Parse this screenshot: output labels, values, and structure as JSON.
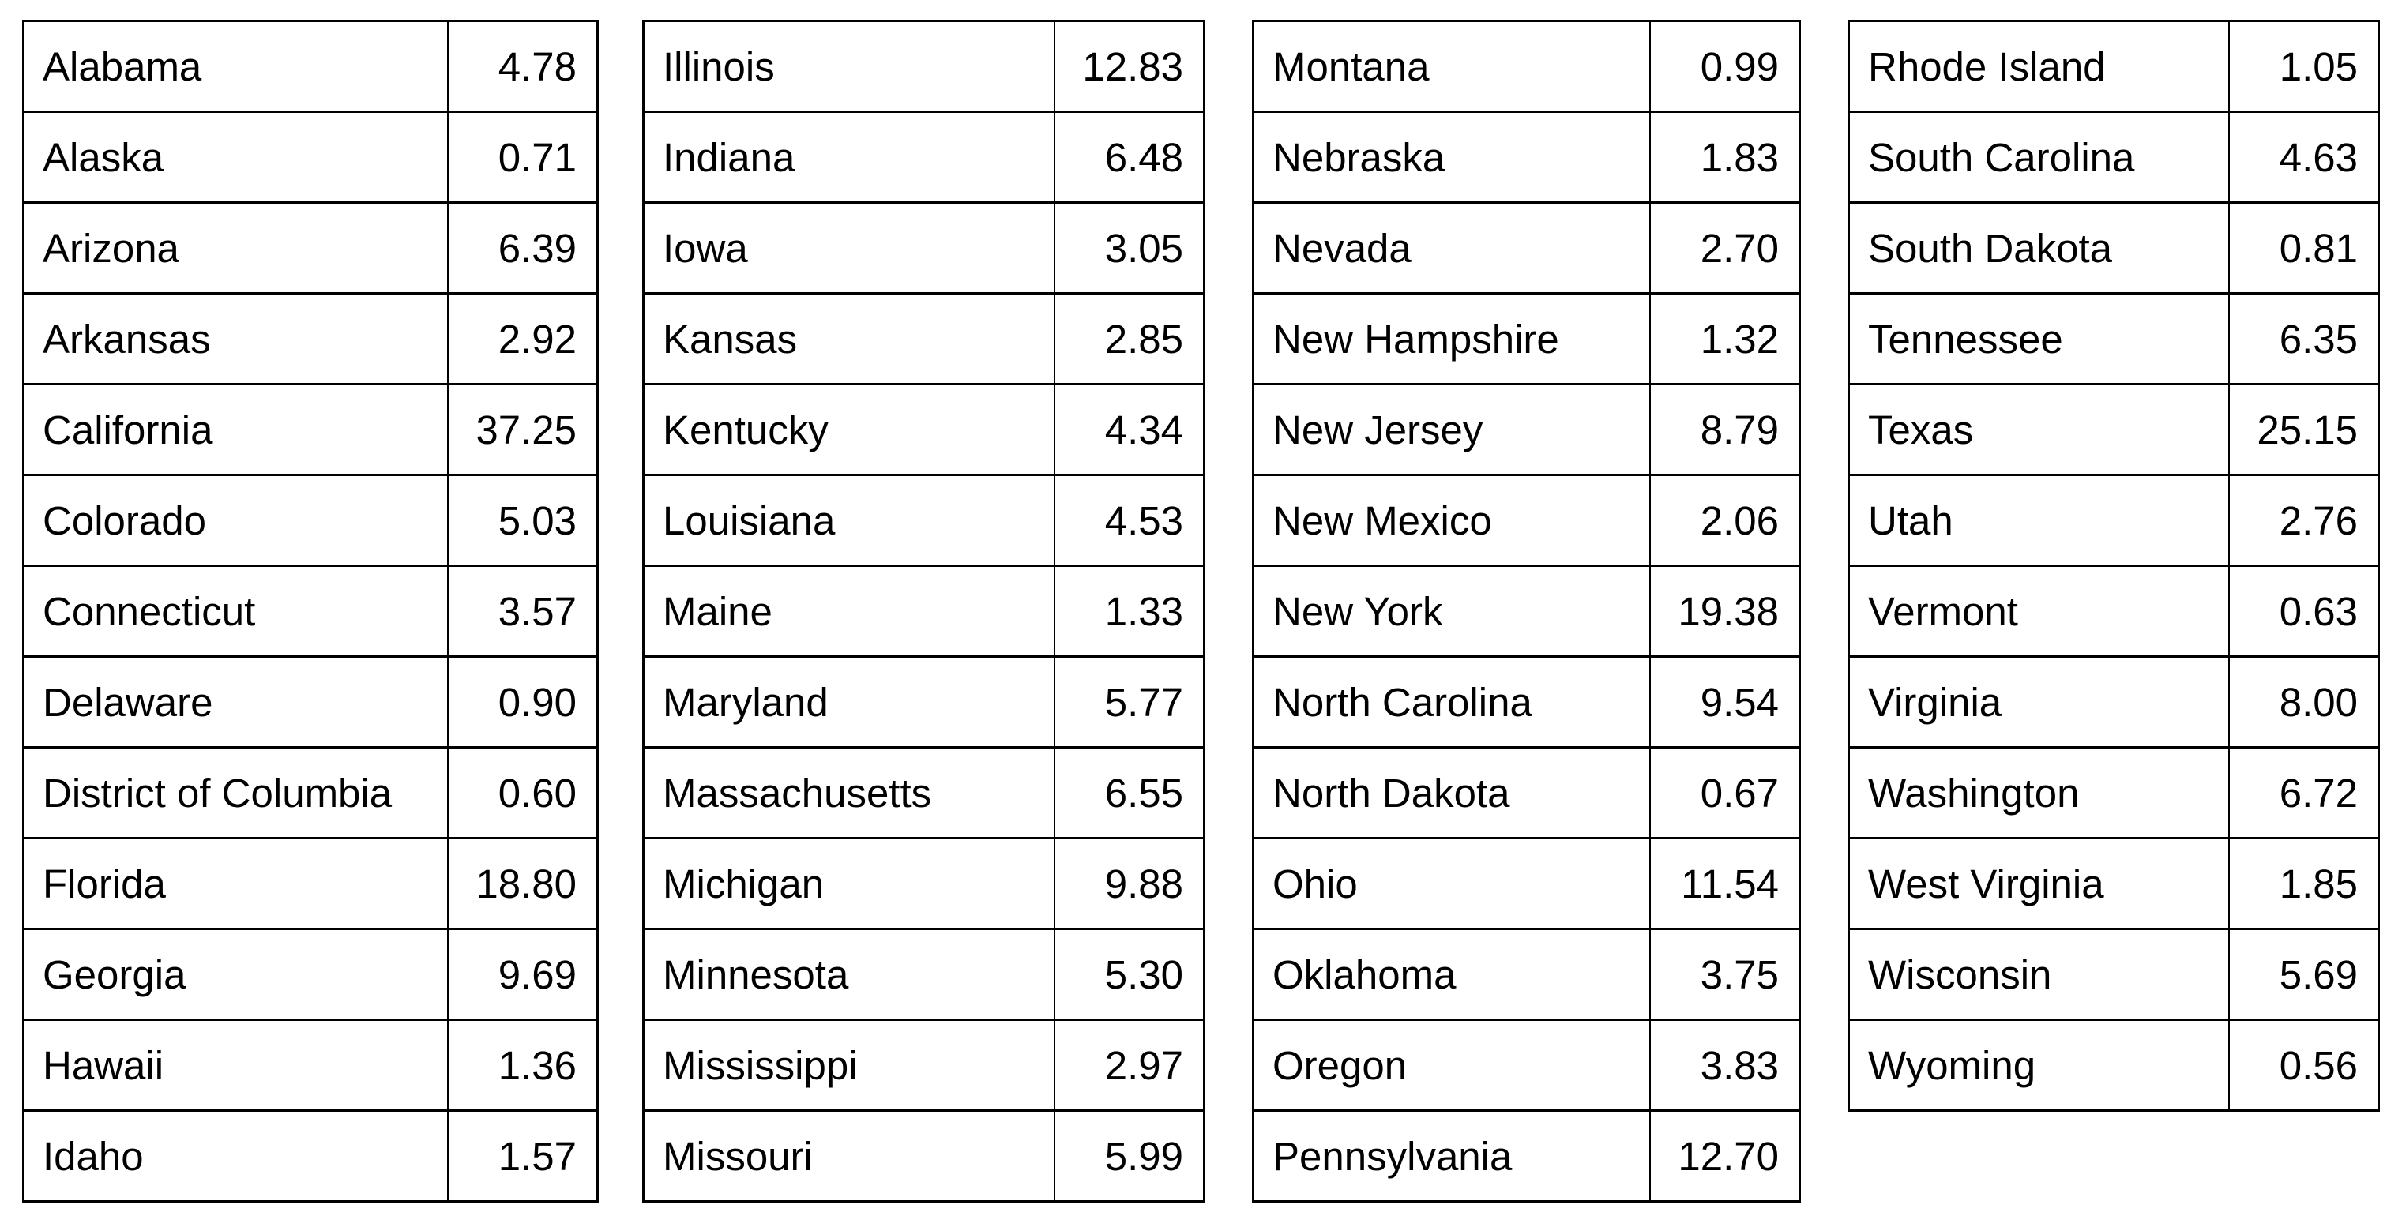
{
  "tables": [
    {
      "rows": [
        {
          "state": "Alabama",
          "value": "4.78"
        },
        {
          "state": "Alaska",
          "value": "0.71"
        },
        {
          "state": "Arizona",
          "value": "6.39"
        },
        {
          "state": "Arkansas",
          "value": "2.92"
        },
        {
          "state": "California",
          "value": "37.25"
        },
        {
          "state": "Colorado",
          "value": "5.03"
        },
        {
          "state": "Connecticut",
          "value": "3.57"
        },
        {
          "state": "Delaware",
          "value": "0.90"
        },
        {
          "state": "District of Columbia",
          "value": "0.60"
        },
        {
          "state": "Florida",
          "value": "18.80"
        },
        {
          "state": "Georgia",
          "value": "9.69"
        },
        {
          "state": "Hawaii",
          "value": "1.36"
        },
        {
          "state": "Idaho",
          "value": "1.57"
        }
      ]
    },
    {
      "rows": [
        {
          "state": "Illinois",
          "value": "12.83"
        },
        {
          "state": "Indiana",
          "value": "6.48"
        },
        {
          "state": "Iowa",
          "value": "3.05"
        },
        {
          "state": "Kansas",
          "value": "2.85"
        },
        {
          "state": "Kentucky",
          "value": "4.34"
        },
        {
          "state": "Louisiana",
          "value": "4.53"
        },
        {
          "state": "Maine",
          "value": "1.33"
        },
        {
          "state": "Maryland",
          "value": "5.77"
        },
        {
          "state": "Massachusetts",
          "value": "6.55"
        },
        {
          "state": "Michigan",
          "value": "9.88"
        },
        {
          "state": "Minnesota",
          "value": "5.30"
        },
        {
          "state": "Mississippi",
          "value": "2.97"
        },
        {
          "state": "Missouri",
          "value": "5.99"
        }
      ]
    },
    {
      "rows": [
        {
          "state": "Montana",
          "value": "0.99"
        },
        {
          "state": "Nebraska",
          "value": "1.83"
        },
        {
          "state": "Nevada",
          "value": "2.70"
        },
        {
          "state": "New Hampshire",
          "value": "1.32"
        },
        {
          "state": "New Jersey",
          "value": "8.79"
        },
        {
          "state": "New Mexico",
          "value": "2.06"
        },
        {
          "state": "New York",
          "value": "19.38"
        },
        {
          "state": "North Carolina",
          "value": "9.54"
        },
        {
          "state": "North Dakota",
          "value": "0.67"
        },
        {
          "state": "Ohio",
          "value": "11.54"
        },
        {
          "state": "Oklahoma",
          "value": "3.75"
        },
        {
          "state": "Oregon",
          "value": "3.83"
        },
        {
          "state": "Pennsylvania",
          "value": "12.70"
        }
      ]
    },
    {
      "rows": [
        {
          "state": "Rhode Island",
          "value": "1.05"
        },
        {
          "state": "South Carolina",
          "value": "4.63"
        },
        {
          "state": "South Dakota",
          "value": "0.81"
        },
        {
          "state": "Tennessee",
          "value": "6.35"
        },
        {
          "state": "Texas",
          "value": "25.15"
        },
        {
          "state": "Utah",
          "value": "2.76"
        },
        {
          "state": "Vermont",
          "value": "0.63"
        },
        {
          "state": "Virginia",
          "value": "8.00"
        },
        {
          "state": "Washington",
          "value": "6.72"
        },
        {
          "state": "West Virginia",
          "value": "1.85"
        },
        {
          "state": "Wisconsin",
          "value": "5.69"
        },
        {
          "state": "Wyoming",
          "value": "0.56"
        }
      ]
    }
  ],
  "chart_data": {
    "type": "table",
    "tables": [
      {
        "rows": [
          [
            "Alabama",
            4.78
          ],
          [
            "Alaska",
            0.71
          ],
          [
            "Arizona",
            6.39
          ],
          [
            "Arkansas",
            2.92
          ],
          [
            "California",
            37.25
          ],
          [
            "Colorado",
            5.03
          ],
          [
            "Connecticut",
            3.57
          ],
          [
            "Delaware",
            0.9
          ],
          [
            "District of Columbia",
            0.6
          ],
          [
            "Florida",
            18.8
          ],
          [
            "Georgia",
            9.69
          ],
          [
            "Hawaii",
            1.36
          ],
          [
            "Idaho",
            1.57
          ]
        ]
      },
      {
        "rows": [
          [
            "Illinois",
            12.83
          ],
          [
            "Indiana",
            6.48
          ],
          [
            "Iowa",
            3.05
          ],
          [
            "Kansas",
            2.85
          ],
          [
            "Kentucky",
            4.34
          ],
          [
            "Louisiana",
            4.53
          ],
          [
            "Maine",
            1.33
          ],
          [
            "Maryland",
            5.77
          ],
          [
            "Massachusetts",
            6.55
          ],
          [
            "Michigan",
            9.88
          ],
          [
            "Minnesota",
            5.3
          ],
          [
            "Mississippi",
            2.97
          ],
          [
            "Missouri",
            5.99
          ]
        ]
      },
      {
        "rows": [
          [
            "Montana",
            0.99
          ],
          [
            "Nebraska",
            1.83
          ],
          [
            "Nevada",
            2.7
          ],
          [
            "New Hampshire",
            1.32
          ],
          [
            "New Jersey",
            8.79
          ],
          [
            "New Mexico",
            2.06
          ],
          [
            "New York",
            19.38
          ],
          [
            "North Carolina",
            9.54
          ],
          [
            "North Dakota",
            0.67
          ],
          [
            "Ohio",
            11.54
          ],
          [
            "Oklahoma",
            3.75
          ],
          [
            "Oregon",
            3.83
          ],
          [
            "Pennsylvania",
            12.7
          ]
        ]
      },
      {
        "rows": [
          [
            "Rhode Island",
            1.05
          ],
          [
            "South Carolina",
            4.63
          ],
          [
            "South Dakota",
            0.81
          ],
          [
            "Tennessee",
            6.35
          ],
          [
            "Texas",
            25.15
          ],
          [
            "Utah",
            2.76
          ],
          [
            "Vermont",
            0.63
          ],
          [
            "Virginia",
            8.0
          ],
          [
            "Washington",
            6.72
          ],
          [
            "West Virginia",
            1.85
          ],
          [
            "Wisconsin",
            5.69
          ],
          [
            "Wyoming",
            0.56
          ]
        ]
      }
    ]
  }
}
